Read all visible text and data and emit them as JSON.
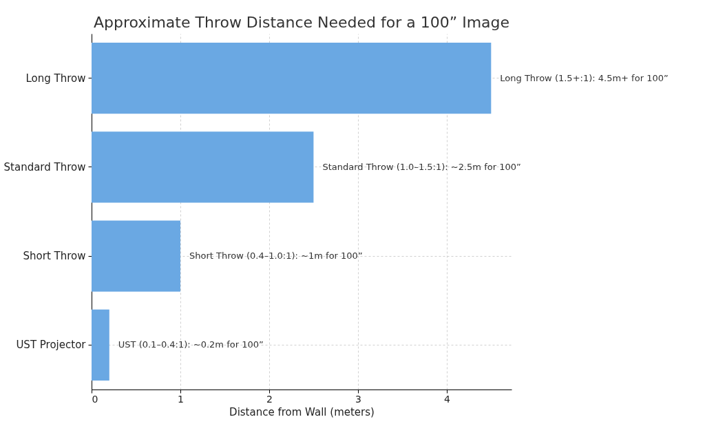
{
  "chart_data": {
    "type": "bar",
    "orientation": "horizontal",
    "title": "Approximate Throw Distance Needed for a 100” Image",
    "xlabel": "Distance from Wall (meters)",
    "categories": [
      "Long Throw",
      "Standard Throw",
      "Short Throw",
      "UST Projector"
    ],
    "values": [
      4.5,
      2.5,
      1,
      0.2
    ],
    "color": "#6aa8e3",
    "value_labels": [
      "Long Throw (1.5+:1): 4.5m+ for 100”",
      "Standard Throw (1.0–1.5:1): ~2.5m for 100”",
      "Short Throw (0.4–1.0:1): ~1m for 100”",
      "UST (0.1–0.4:1): ~0.2m for 100”"
    ],
    "xlim": [
      0,
      4.73
    ],
    "xticks": [
      0,
      1,
      2,
      3,
      4
    ],
    "grid": true
  }
}
